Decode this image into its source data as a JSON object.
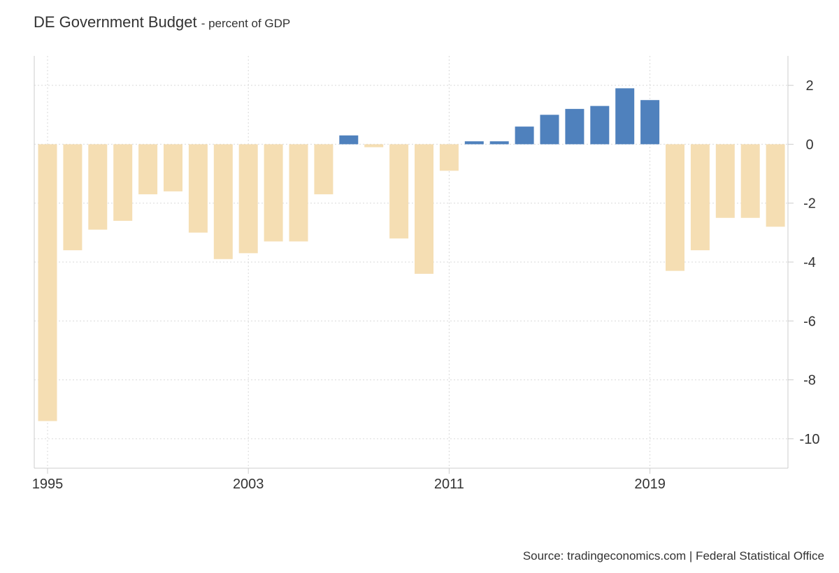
{
  "chart_data": {
    "type": "bar",
    "title": "DE Government Budget",
    "subtitle": "- percent of GDP",
    "xlabel": "",
    "ylabel": "",
    "categories": [
      "1995",
      "1996",
      "1997",
      "1998",
      "1999",
      "2000",
      "2001",
      "2002",
      "2003",
      "2004",
      "2005",
      "2006",
      "2007",
      "2008",
      "2009",
      "2010",
      "2011",
      "2012",
      "2013",
      "2014",
      "2015",
      "2016",
      "2017",
      "2018",
      "2019",
      "2020",
      "2021",
      "2022",
      "2023",
      "2024"
    ],
    "values": [
      -9.4,
      -3.6,
      -2.9,
      -2.6,
      -1.7,
      -1.6,
      -3.0,
      -3.9,
      -3.7,
      -3.3,
      -3.3,
      -1.7,
      0.3,
      -0.1,
      -3.2,
      -4.4,
      -0.9,
      0.1,
      0.1,
      0.6,
      1.0,
      1.2,
      1.3,
      1.9,
      1.5,
      -4.3,
      -3.6,
      -2.5,
      -2.5,
      -2.8
    ],
    "x_tick_labels": [
      "1995",
      "2003",
      "2011",
      "2019"
    ],
    "y_tick_labels": [
      "2",
      "0",
      "-2",
      "-4",
      "-6",
      "-8",
      "-10"
    ],
    "ylim": [
      -11,
      3
    ],
    "grid": true,
    "colors": {
      "positive": "#4f81bd",
      "negative": "#f5deb3",
      "grid": "#d9d9d9",
      "axis": "#cccccc",
      "text": "#333333"
    }
  },
  "source": "Source: tradingeconomics.com | Federal Statistical Office"
}
